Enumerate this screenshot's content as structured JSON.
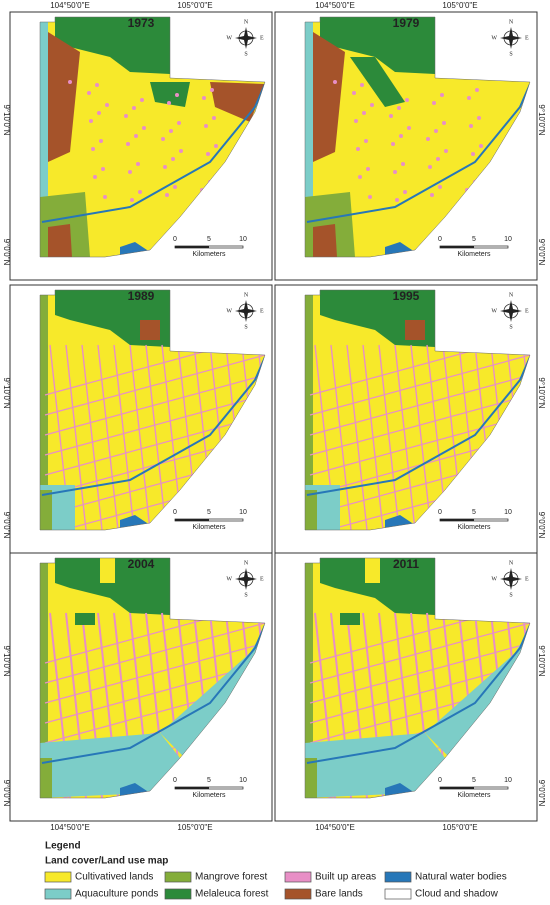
{
  "panels": [
    {
      "year": "1973"
    },
    {
      "year": "1979"
    },
    {
      "year": "1989"
    },
    {
      "year": "1995"
    },
    {
      "year": "2004"
    },
    {
      "year": "2011"
    }
  ],
  "coordinates": {
    "lon": [
      "104°50'0\"E",
      "105°0'0\"E"
    ],
    "lat": [
      "9°10'0\"N",
      "9°0'0\"N"
    ]
  },
  "compass": {
    "n": "N",
    "s": "S",
    "e": "E",
    "w": "W"
  },
  "scale": {
    "ticks": [
      0,
      5,
      10
    ],
    "unit": "Kilometers"
  },
  "legend": {
    "title": "Legend",
    "subtitle": "Land cover/Land use map",
    "items": [
      {
        "name": "Cultivatived lands",
        "color": "#f7e92a"
      },
      {
        "name": "Aquaculture ponds",
        "color": "#7ccdc8"
      },
      {
        "name": "Mangrove forest",
        "color": "#84ad3a"
      },
      {
        "name": "Melaleuca forest",
        "color": "#2c8a3a"
      },
      {
        "name": "Built up areas",
        "color": "#e88fc6"
      },
      {
        "name": "Bare lands",
        "color": "#a5532a"
      },
      {
        "name": "Natural water bodies",
        "color": "#2777b8"
      },
      {
        "name": "Cloud and shadow",
        "color": "#ffffff"
      }
    ]
  }
}
